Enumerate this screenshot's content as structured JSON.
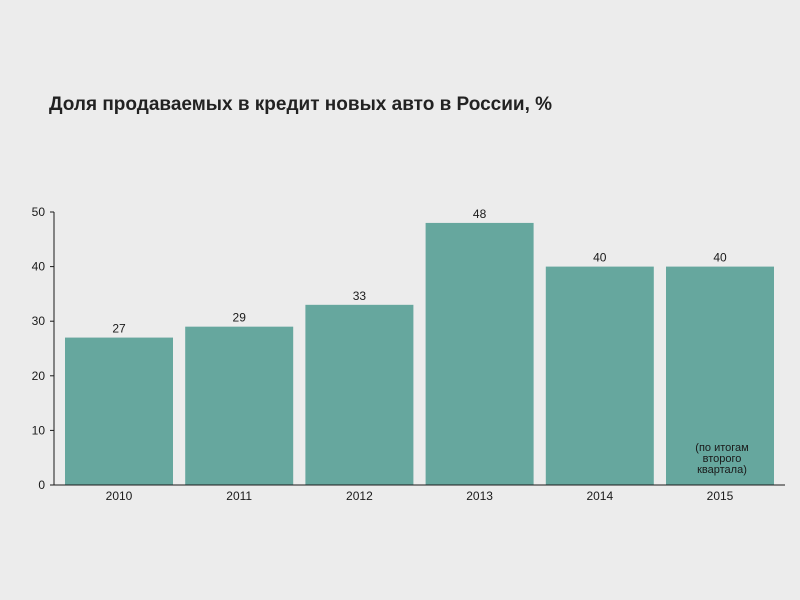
{
  "chart_data": {
    "type": "bar",
    "title": "Доля продаваемых в кредит новых авто в России, %",
    "xlabel": "",
    "ylabel": "",
    "categories": [
      "2010",
      "2011",
      "2012",
      "2013",
      "2014",
      "2015"
    ],
    "values": [
      27,
      29,
      33,
      48,
      40,
      40
    ],
    "data_labels": [
      "27",
      "29",
      "33",
      "48",
      "40",
      "40"
    ],
    "yticks": [
      0,
      10,
      20,
      30,
      40,
      50
    ],
    "ylim": [
      0,
      50
    ],
    "grid": false,
    "legend": "none",
    "bar_color": "#66a79e",
    "annotations": [
      {
        "category": "2015",
        "lines": [
          "(по итогам",
          "второго",
          "квартала)"
        ]
      }
    ]
  }
}
